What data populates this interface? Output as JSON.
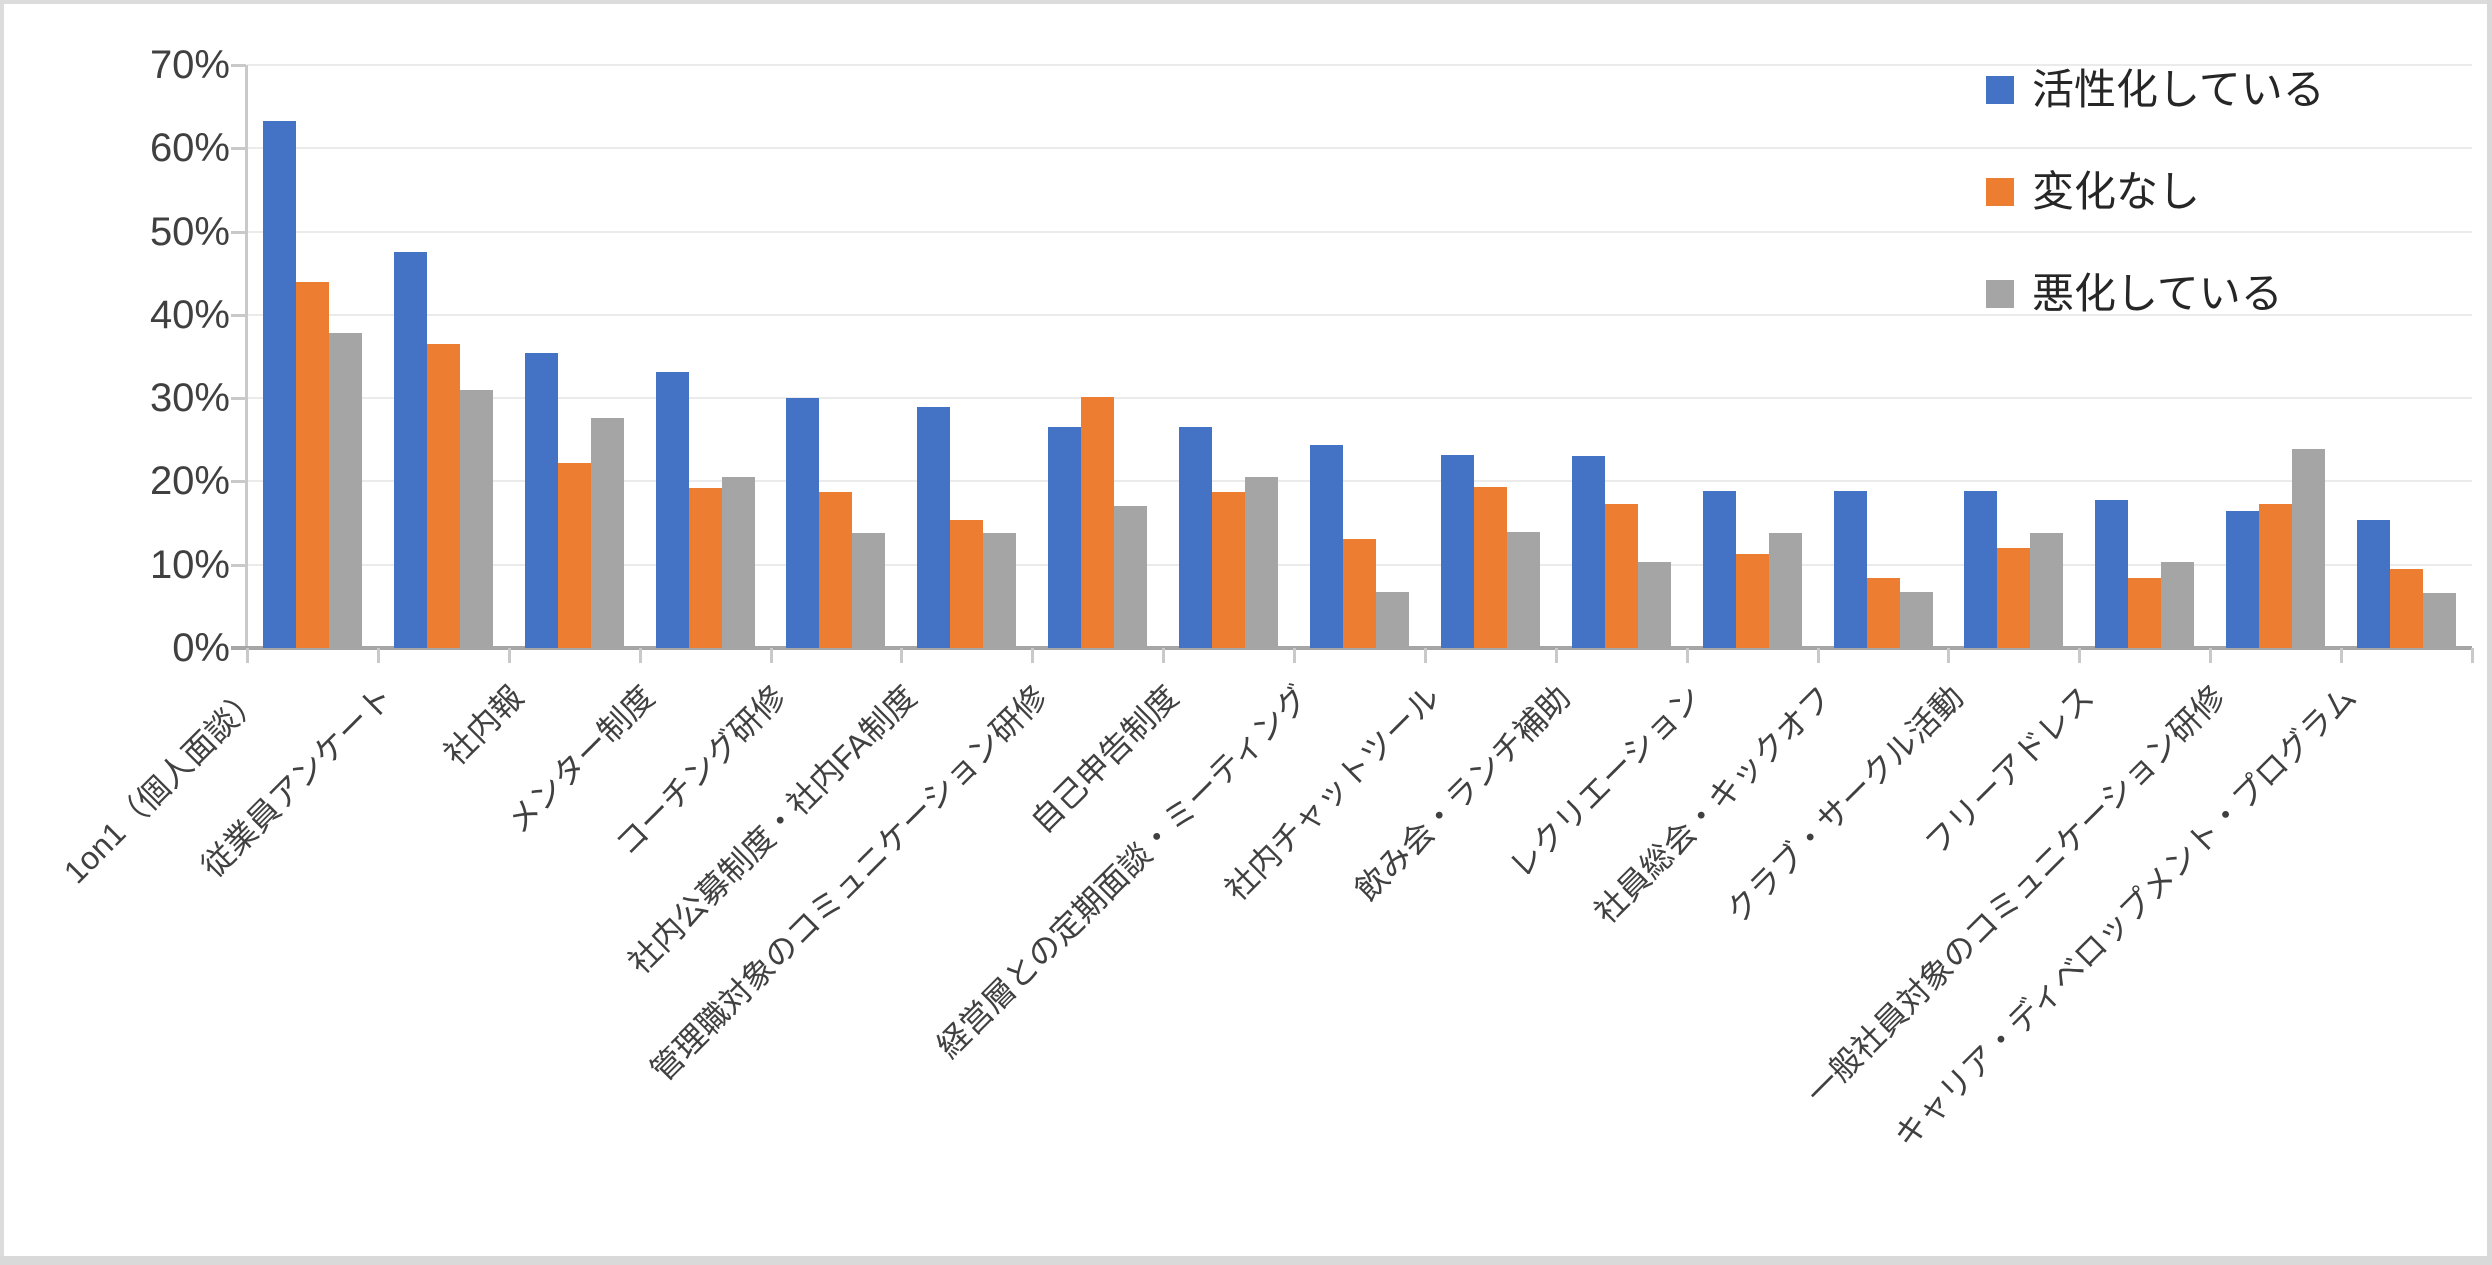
{
  "chart_data": {
    "type": "bar",
    "title": "",
    "xlabel": "",
    "ylabel": "",
    "y_unit": "%",
    "ylim": [
      0,
      70
    ],
    "y_tick_step": 10,
    "grid": true,
    "legend_position": "top-right",
    "categories": [
      "1on1（個人面談）",
      "従業員アンケート",
      "社内報",
      "メンター制度",
      "コーチング研修",
      "社内公募制度・社内FA制度",
      "管理職対象のコミュニケーション研修",
      "自己申告制度",
      "経営層との定期面談・ミーティング",
      "社内チャットツール",
      "飲み会・ランチ補助",
      "レクリエーション",
      "社員総会・キックオフ",
      "クラブ・サークル活動",
      "フリーアドレス",
      "一般社員対象のコミュニケーション研修",
      "キャリア・ディベロップメント・プログラム"
    ],
    "series": [
      {
        "name": "活性化している",
        "color": "#4472C4",
        "values": [
          63.3,
          47.6,
          35.4,
          33.1,
          30.0,
          28.9,
          26.5,
          26.5,
          24.4,
          23.2,
          23.1,
          18.9,
          18.9,
          18.9,
          17.8,
          16.5,
          15.4
        ]
      },
      {
        "name": "変化なし",
        "color": "#ED7D31",
        "values": [
          43.9,
          36.5,
          22.2,
          19.2,
          18.7,
          15.4,
          30.1,
          18.7,
          13.1,
          19.3,
          17.3,
          11.3,
          8.4,
          12.0,
          8.4,
          17.3,
          9.5
        ]
      },
      {
        "name": "悪化している",
        "color": "#A5A5A5",
        "values": [
          37.8,
          31.0,
          27.6,
          20.5,
          13.8,
          13.8,
          17.1,
          20.5,
          6.7,
          13.9,
          10.3,
          13.8,
          6.7,
          13.8,
          10.3,
          23.9,
          6.6
        ]
      }
    ],
    "y_axis": {
      "tick_labels": [
        "0%",
        "10%",
        "20%",
        "30%",
        "40%",
        "50%",
        "60%",
        "70%"
      ]
    }
  }
}
